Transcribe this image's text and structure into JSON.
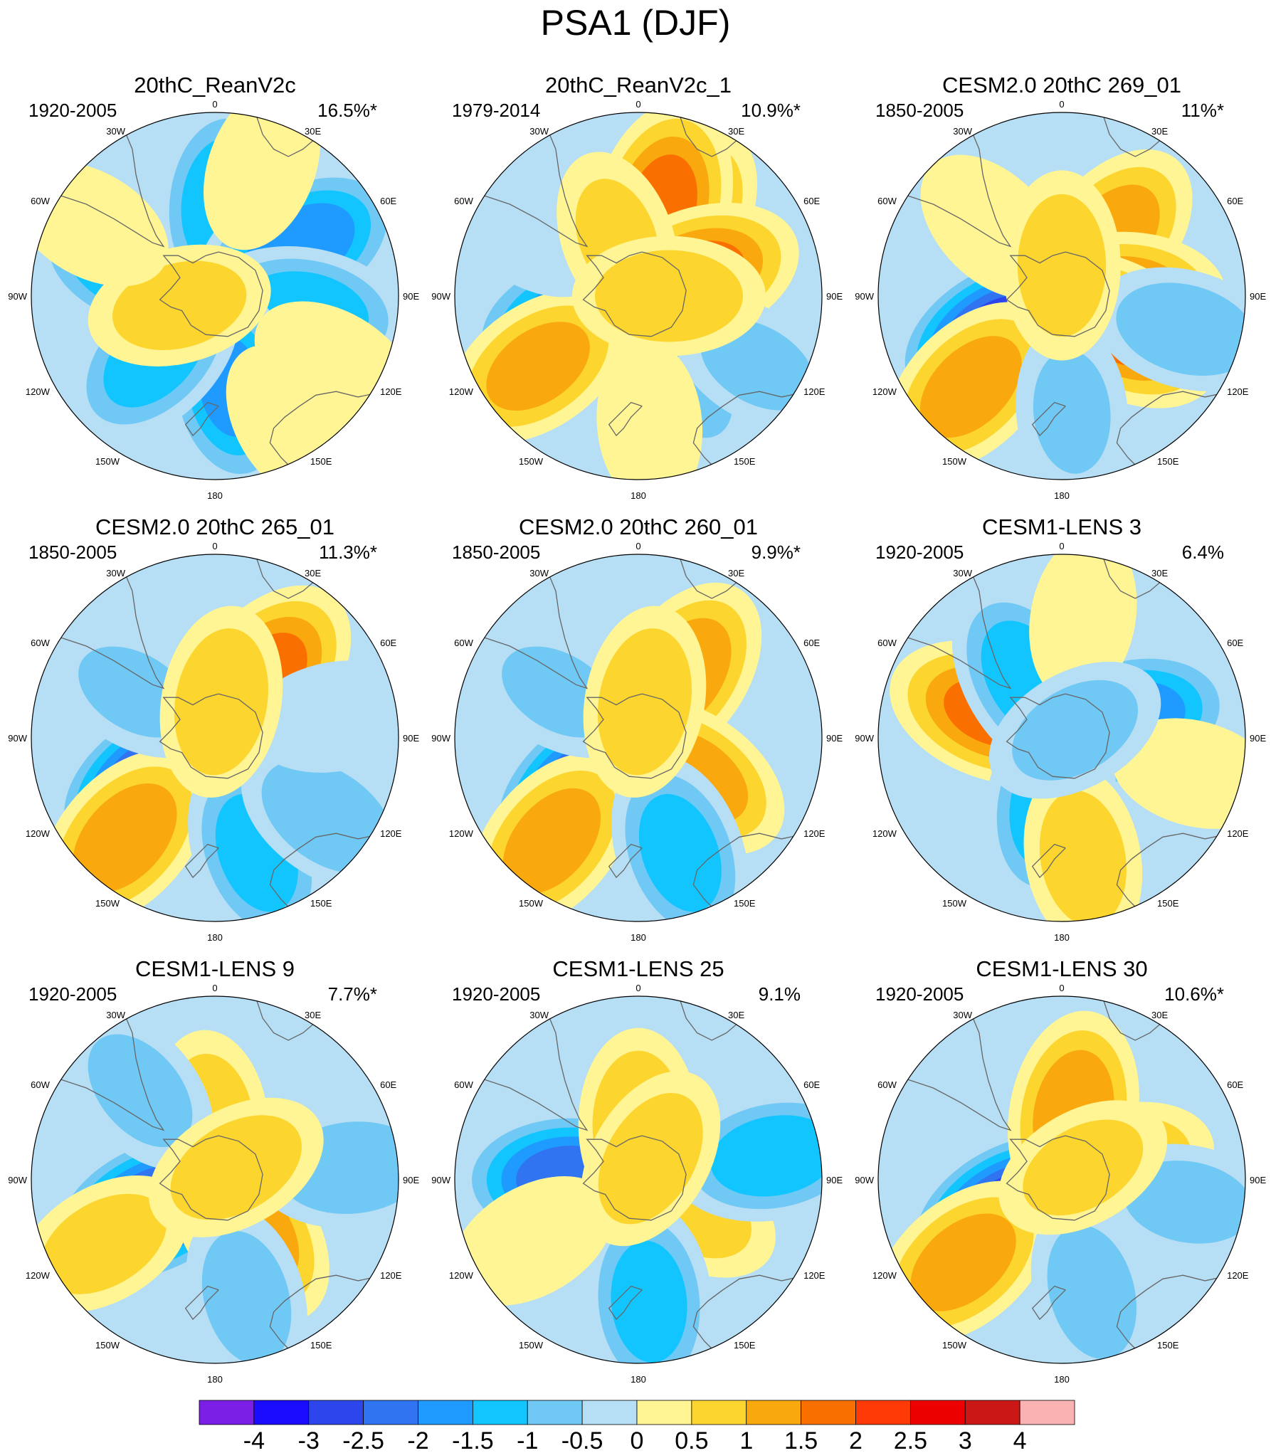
{
  "figure": {
    "title": "PSA1 (DJF)"
  },
  "colors": {
    "levels": [
      -4,
      -3,
      -2.5,
      -2,
      -1.5,
      -1,
      -0.5,
      0,
      0.5,
      1,
      1.5,
      2,
      2.5,
      3,
      4
    ],
    "bins": [
      "#7b1fe6",
      "#1a0cff",
      "#2d46ec",
      "#3074f2",
      "#1f9bff",
      "#12c5ff",
      "#70c8f4",
      "#b6def4",
      "#fff594",
      "#fcd52e",
      "#f9a80e",
      "#fa7000",
      "#ff3a06",
      "#ec0000",
      "#cc1717",
      "#fbb2b2"
    ],
    "coast": "#666666",
    "outline": "#000000"
  },
  "longitude_labels": [
    "0",
    "30E",
    "60E",
    "90E",
    "120E",
    "150E",
    "180",
    "150W",
    "120W",
    "90W",
    "60W",
    "30W"
  ],
  "chart_data": [
    {
      "type": "heatmap",
      "projection": "south-polar-stereographic",
      "title": "20thC_ReanV2c",
      "period": "1920-2005",
      "variance": "16.5%*",
      "features": [
        {
          "lon": 300,
          "colat": 12,
          "value": -0.5
        },
        {
          "lon": 60,
          "colat": 10,
          "value": 0.1
        },
        {
          "lon": 290,
          "colat": 28,
          "value": -1.6
        },
        {
          "lon": 5,
          "colat": 30,
          "value": -1.5
        },
        {
          "lon": 60,
          "colat": 32,
          "value": -1.9
        },
        {
          "lon": 100,
          "colat": 30,
          "value": -1.4
        },
        {
          "lon": 170,
          "colat": 30,
          "value": -1.6
        },
        {
          "lon": 225,
          "colat": 28,
          "value": -1.3
        },
        {
          "lon": 255,
          "colat": 12,
          "value": 0.8
        },
        {
          "lon": 20,
          "colat": 45,
          "value": 0.4
        },
        {
          "lon": 120,
          "colat": 45,
          "value": 0.4
        },
        {
          "lon": 150,
          "colat": 48,
          "value": 0.3
        },
        {
          "lon": 300,
          "colat": 47,
          "value": 0.3
        }
      ]
    },
    {
      "type": "heatmap",
      "projection": "south-polar-stereographic",
      "title": "20thC_ReanV2c_1",
      "period": "1979-2014",
      "variance": "10.9%*",
      "features": [
        {
          "lon": 30,
          "colat": 28,
          "value": 1.4
        },
        {
          "lon": 15,
          "colat": 30,
          "value": 1.7
        },
        {
          "lon": 70,
          "colat": 20,
          "value": 1.6
        },
        {
          "lon": 250,
          "colat": 22,
          "value": -2.0
        },
        {
          "lon": 235,
          "colat": 40,
          "value": 1.2
        },
        {
          "lon": 150,
          "colat": 32,
          "value": -0.6
        },
        {
          "lon": 120,
          "colat": 45,
          "value": -0.6
        },
        {
          "lon": 175,
          "colat": 42,
          "value": 0.3
        },
        {
          "lon": 300,
          "colat": 40,
          "value": -0.3
        },
        {
          "lon": 340,
          "colat": 20,
          "value": 0.6
        },
        {
          "lon": 90,
          "colat": 10,
          "value": 1.0
        }
      ]
    },
    {
      "type": "heatmap",
      "projection": "south-polar-stereographic",
      "title": "CESM2.0 20thC 269_01",
      "period": "1850-2005",
      "variance": "11%*",
      "features": [
        {
          "lon": 40,
          "colat": 25,
          "value": 1.3
        },
        {
          "lon": 90,
          "colat": 20,
          "value": 1.4
        },
        {
          "lon": 120,
          "colat": 22,
          "value": 1.6
        },
        {
          "lon": 240,
          "colat": 24,
          "value": -2.9
        },
        {
          "lon": 225,
          "colat": 42,
          "value": 1.3
        },
        {
          "lon": 175,
          "colat": 38,
          "value": -0.6
        },
        {
          "lon": 105,
          "colat": 42,
          "value": -0.9
        },
        {
          "lon": 315,
          "colat": 32,
          "value": 0.4
        },
        {
          "lon": 0,
          "colat": 10,
          "value": 0.9
        }
      ]
    },
    {
      "type": "heatmap",
      "projection": "south-polar-stereographic",
      "title": "CESM2.0 20thC 265_01",
      "period": "1850-2005",
      "variance": "11.3%*",
      "features": [
        {
          "lon": 40,
          "colat": 25,
          "value": 1.7
        },
        {
          "lon": 125,
          "colat": 22,
          "value": 1.4
        },
        {
          "lon": 235,
          "colat": 24,
          "value": -2.9
        },
        {
          "lon": 222,
          "colat": 44,
          "value": 1.4
        },
        {
          "lon": 160,
          "colat": 40,
          "value": -1.3
        },
        {
          "lon": 125,
          "colat": 45,
          "value": -1.0
        },
        {
          "lon": 80,
          "colat": 40,
          "value": -0.5
        },
        {
          "lon": 300,
          "colat": 30,
          "value": -0.6
        },
        {
          "lon": 10,
          "colat": 12,
          "value": 1.0
        }
      ]
    },
    {
      "type": "heatmap",
      "projection": "south-polar-stereographic",
      "title": "CESM2.0 20thC 260_01",
      "period": "1850-2005",
      "variance": "9.9%*",
      "features": [
        {
          "lon": 35,
          "colat": 25,
          "value": 1.4
        },
        {
          "lon": 125,
          "colat": 22,
          "value": 1.3
        },
        {
          "lon": 228,
          "colat": 24,
          "value": -2.8
        },
        {
          "lon": 220,
          "colat": 44,
          "value": 1.3
        },
        {
          "lon": 160,
          "colat": 40,
          "value": -1.3
        },
        {
          "lon": 300,
          "colat": 30,
          "value": -0.6
        },
        {
          "lon": 10,
          "colat": 12,
          "value": 1.0
        }
      ]
    },
    {
      "type": "heatmap",
      "projection": "south-polar-stereographic",
      "title": "CESM1-LENS 3",
      "period": "1920-2005",
      "variance": "6.4%",
      "features": [
        {
          "lon": 290,
          "colat": 24,
          "value": 1.6
        },
        {
          "lon": 330,
          "colat": 22,
          "value": -1.4
        },
        {
          "lon": 75,
          "colat": 22,
          "value": -1.9
        },
        {
          "lon": 190,
          "colat": 22,
          "value": -1.4
        },
        {
          "lon": 170,
          "colat": 40,
          "value": 0.8
        },
        {
          "lon": 105,
          "colat": 45,
          "value": 0.3
        },
        {
          "lon": 10,
          "colat": 40,
          "value": 0.3
        },
        {
          "lon": 60,
          "colat": 5,
          "value": -0.8
        }
      ]
    },
    {
      "type": "heatmap",
      "projection": "south-polar-stereographic",
      "title": "CESM1-LENS 9",
      "period": "1920-2005",
      "variance": "7.7%*",
      "features": [
        {
          "lon": 245,
          "colat": 22,
          "value": -2.8
        },
        {
          "lon": 145,
          "colat": 20,
          "value": 1.4
        },
        {
          "lon": 355,
          "colat": 18,
          "value": 0.9
        },
        {
          "lon": 240,
          "colat": 42,
          "value": 0.8
        },
        {
          "lon": 165,
          "colat": 40,
          "value": -0.8
        },
        {
          "lon": 85,
          "colat": 45,
          "value": -1.0
        },
        {
          "lon": 320,
          "colat": 38,
          "value": -0.7
        },
        {
          "lon": 60,
          "colat": 8,
          "value": 0.9
        }
      ]
    },
    {
      "type": "heatmap",
      "projection": "south-polar-stereographic",
      "title": "CESM1-LENS 25",
      "period": "1920-2005",
      "variance": "9.1%",
      "features": [
        {
          "lon": 270,
          "colat": 22,
          "value": -2.4
        },
        {
          "lon": 0,
          "colat": 18,
          "value": 1.0
        },
        {
          "lon": 85,
          "colat": 22,
          "value": 0.9
        },
        {
          "lon": 120,
          "colat": 20,
          "value": 0.7
        },
        {
          "lon": 80,
          "colat": 45,
          "value": -1.4
        },
        {
          "lon": 175,
          "colat": 40,
          "value": -1.3
        },
        {
          "lon": 240,
          "colat": 40,
          "value": 0.5
        },
        {
          "lon": 30,
          "colat": 8,
          "value": 0.9
        }
      ]
    },
    {
      "type": "heatmap",
      "projection": "south-polar-stereographic",
      "title": "CESM1-LENS 30",
      "period": "1920-2005",
      "variance": "10.6%*",
      "features": [
        {
          "lon": 240,
          "colat": 20,
          "value": -3.0
        },
        {
          "lon": 10,
          "colat": 22,
          "value": 1.4
        },
        {
          "lon": 75,
          "colat": 20,
          "value": 0.9
        },
        {
          "lon": 230,
          "colat": 42,
          "value": 1.3
        },
        {
          "lon": 165,
          "colat": 38,
          "value": -0.8
        },
        {
          "lon": 100,
          "colat": 42,
          "value": -0.7
        },
        {
          "lon": 60,
          "colat": 8,
          "value": 0.7
        }
      ]
    }
  ]
}
